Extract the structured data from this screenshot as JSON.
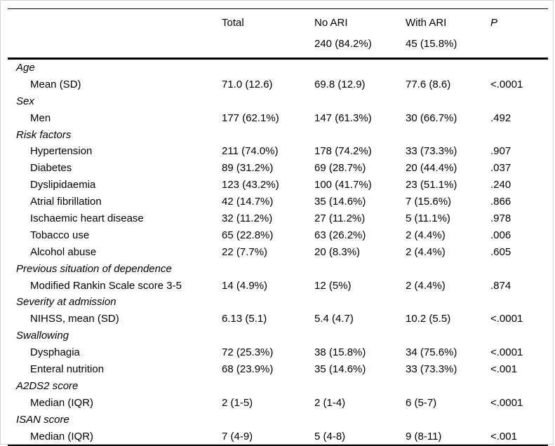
{
  "table": {
    "colors": {
      "text": "#000000",
      "rule": "#000000",
      "background": "#ffffff",
      "page_border": "#d4d4d4"
    },
    "columns": [
      {
        "key": "label",
        "label": "",
        "sublabel": ""
      },
      {
        "key": "total",
        "label": "Total",
        "sublabel": ""
      },
      {
        "key": "no_ari",
        "label": "No ARI",
        "sublabel": "240 (84.2%)"
      },
      {
        "key": "with_ari",
        "label": "With ARI",
        "sublabel": "45 (15.8%)"
      },
      {
        "key": "p",
        "label": "P",
        "sublabel": ""
      }
    ],
    "rows": [
      {
        "type": "section",
        "label": "Age"
      },
      {
        "type": "item",
        "label": "Mean (SD)",
        "total": "71.0 (12.6)",
        "no_ari": "69.8 (12.9)",
        "with_ari": "77.6 (8.6)",
        "p": "<.0001"
      },
      {
        "type": "section",
        "label": "Sex"
      },
      {
        "type": "item",
        "label": "Men",
        "total": "177 (62.1%)",
        "no_ari": "147 (61.3%)",
        "with_ari": "30 (66.7%)",
        "p": ".492"
      },
      {
        "type": "section",
        "label": "Risk factors"
      },
      {
        "type": "item",
        "label": "Hypertension",
        "total": "211 (74.0%)",
        "no_ari": "178 (74.2%)",
        "with_ari": "33 (73.3%)",
        "p": ".907"
      },
      {
        "type": "item",
        "label": "Diabetes",
        "total": "89 (31.2%)",
        "no_ari": "69 (28.7%)",
        "with_ari": "20 (44.4%)",
        "p": ".037"
      },
      {
        "type": "item",
        "label": "Dyslipidaemia",
        "total": "123 (43.2%)",
        "no_ari": "100 (41.7%)",
        "with_ari": "23 (51.1%)",
        "p": ".240"
      },
      {
        "type": "item",
        "label": "Atrial fibrillation",
        "total": "42 (14.7%)",
        "no_ari": "35 (14.6%)",
        "with_ari": "7 (15.6%)",
        "p": ".866"
      },
      {
        "type": "item",
        "label": "Ischaemic heart disease",
        "total": "32 (11.2%)",
        "no_ari": "27 (11.2%)",
        "with_ari": "5 (11.1%)",
        "p": ".978"
      },
      {
        "type": "item",
        "label": "Tobacco use",
        "total": "65 (22.8%)",
        "no_ari": "63 (26.2%)",
        "with_ari": "2 (4.4%)",
        "p": ".006"
      },
      {
        "type": "item",
        "label": "Alcohol abuse",
        "total": "22 (7.7%)",
        "no_ari": "20 (8.3%)",
        "with_ari": "2 (4.4%)",
        "p": ".605"
      },
      {
        "type": "section",
        "label": "Previous situation of dependence"
      },
      {
        "type": "item",
        "label": "Modified Rankin Scale score 3-5",
        "total": "14 (4.9%)",
        "no_ari": "12 (5%)",
        "with_ari": "2 (4.4%)",
        "p": ".874"
      },
      {
        "type": "section",
        "label": "Severity at admission"
      },
      {
        "type": "item",
        "label": "NIHSS, mean (SD)",
        "total": "6.13 (5.1)",
        "no_ari": "5.4 (4.7)",
        "with_ari": "10.2 (5.5)",
        "p": "<.0001"
      },
      {
        "type": "section",
        "label": "Swallowing"
      },
      {
        "type": "item",
        "label": "Dysphagia",
        "total": "72 (25.3%)",
        "no_ari": "38 (15.8%)",
        "with_ari": "34 (75.6%)",
        "p": "<.0001"
      },
      {
        "type": "item",
        "label": "Enteral nutrition",
        "total": "68 (23.9%)",
        "no_ari": "35 (14.6%)",
        "with_ari": "33 (73.3%)",
        "p": "<.001"
      },
      {
        "type": "section",
        "label": "A2DS2 score"
      },
      {
        "type": "item",
        "label": "Median (IQR)",
        "total": "2 (1-5)",
        "no_ari": "2 (1-4)",
        "with_ari": "6 (5-7)",
        "p": "<.0001"
      },
      {
        "type": "section",
        "label": "ISAN score"
      },
      {
        "type": "item",
        "label": "Median (IQR)",
        "total": "7 (4-9)",
        "no_ari": "5 (4-8)",
        "with_ari": "9 (8-11)",
        "p": "<.001"
      }
    ]
  }
}
